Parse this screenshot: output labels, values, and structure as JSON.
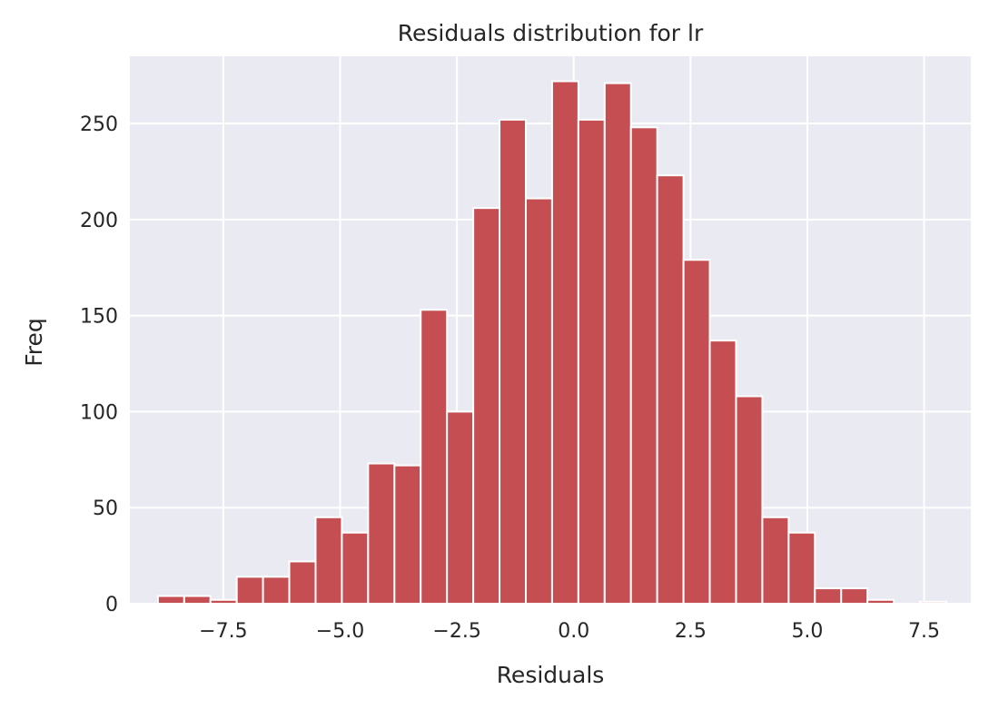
{
  "chart_data": {
    "type": "bar",
    "subtype": "histogram",
    "title": "Residuals distribution for lr",
    "xlabel": "Residuals",
    "ylabel": "Freq",
    "xlim": [
      -9.5,
      8.5
    ],
    "ylim": [
      0,
      285
    ],
    "grid": true,
    "bar_color": "#c44e52",
    "background_color": "#eaeaf2",
    "grid_color": "#ffffff",
    "bin_width": 0.5625,
    "bins": [
      {
        "x0": -8.9,
        "count": 4
      },
      {
        "x0": -8.3375,
        "count": 4
      },
      {
        "x0": -7.775,
        "count": 2
      },
      {
        "x0": -7.2125,
        "count": 14
      },
      {
        "x0": -6.65,
        "count": 14
      },
      {
        "x0": -6.0875,
        "count": 22
      },
      {
        "x0": -5.525,
        "count": 45
      },
      {
        "x0": -4.9625,
        "count": 37
      },
      {
        "x0": -4.4,
        "count": 73
      },
      {
        "x0": -3.8375,
        "count": 72
      },
      {
        "x0": -3.275,
        "count": 153
      },
      {
        "x0": -2.7125,
        "count": 100
      },
      {
        "x0": -2.15,
        "count": 206
      },
      {
        "x0": -1.5875,
        "count": 252
      },
      {
        "x0": -1.025,
        "count": 211
      },
      {
        "x0": -0.4625,
        "count": 272
      },
      {
        "x0": 0.1,
        "count": 252
      },
      {
        "x0": 0.6625,
        "count": 271
      },
      {
        "x0": 1.225,
        "count": 248
      },
      {
        "x0": 1.7875,
        "count": 223
      },
      {
        "x0": 2.35,
        "count": 179
      },
      {
        "x0": 2.9125,
        "count": 137
      },
      {
        "x0": 3.475,
        "count": 108
      },
      {
        "x0": 4.0375,
        "count": 45
      },
      {
        "x0": 4.6,
        "count": 37
      },
      {
        "x0": 5.1625,
        "count": 8
      },
      {
        "x0": 5.725,
        "count": 8
      },
      {
        "x0": 6.2875,
        "count": 2
      },
      {
        "x0": 6.85,
        "count": 0
      },
      {
        "x0": 7.4125,
        "count": 1
      }
    ],
    "xticks": [
      {
        "value": -7.5,
        "label": "−7.5"
      },
      {
        "value": -5.0,
        "label": "−5.0"
      },
      {
        "value": -2.5,
        "label": "−2.5"
      },
      {
        "value": 0.0,
        "label": "0.0"
      },
      {
        "value": 2.5,
        "label": "2.5"
      },
      {
        "value": 5.0,
        "label": "5.0"
      },
      {
        "value": 7.5,
        "label": "7.5"
      }
    ],
    "yticks": [
      {
        "value": 0,
        "label": "0"
      },
      {
        "value": 50,
        "label": "50"
      },
      {
        "value": 100,
        "label": "100"
      },
      {
        "value": 150,
        "label": "150"
      },
      {
        "value": 200,
        "label": "200"
      },
      {
        "value": 250,
        "label": "250"
      }
    ]
  }
}
